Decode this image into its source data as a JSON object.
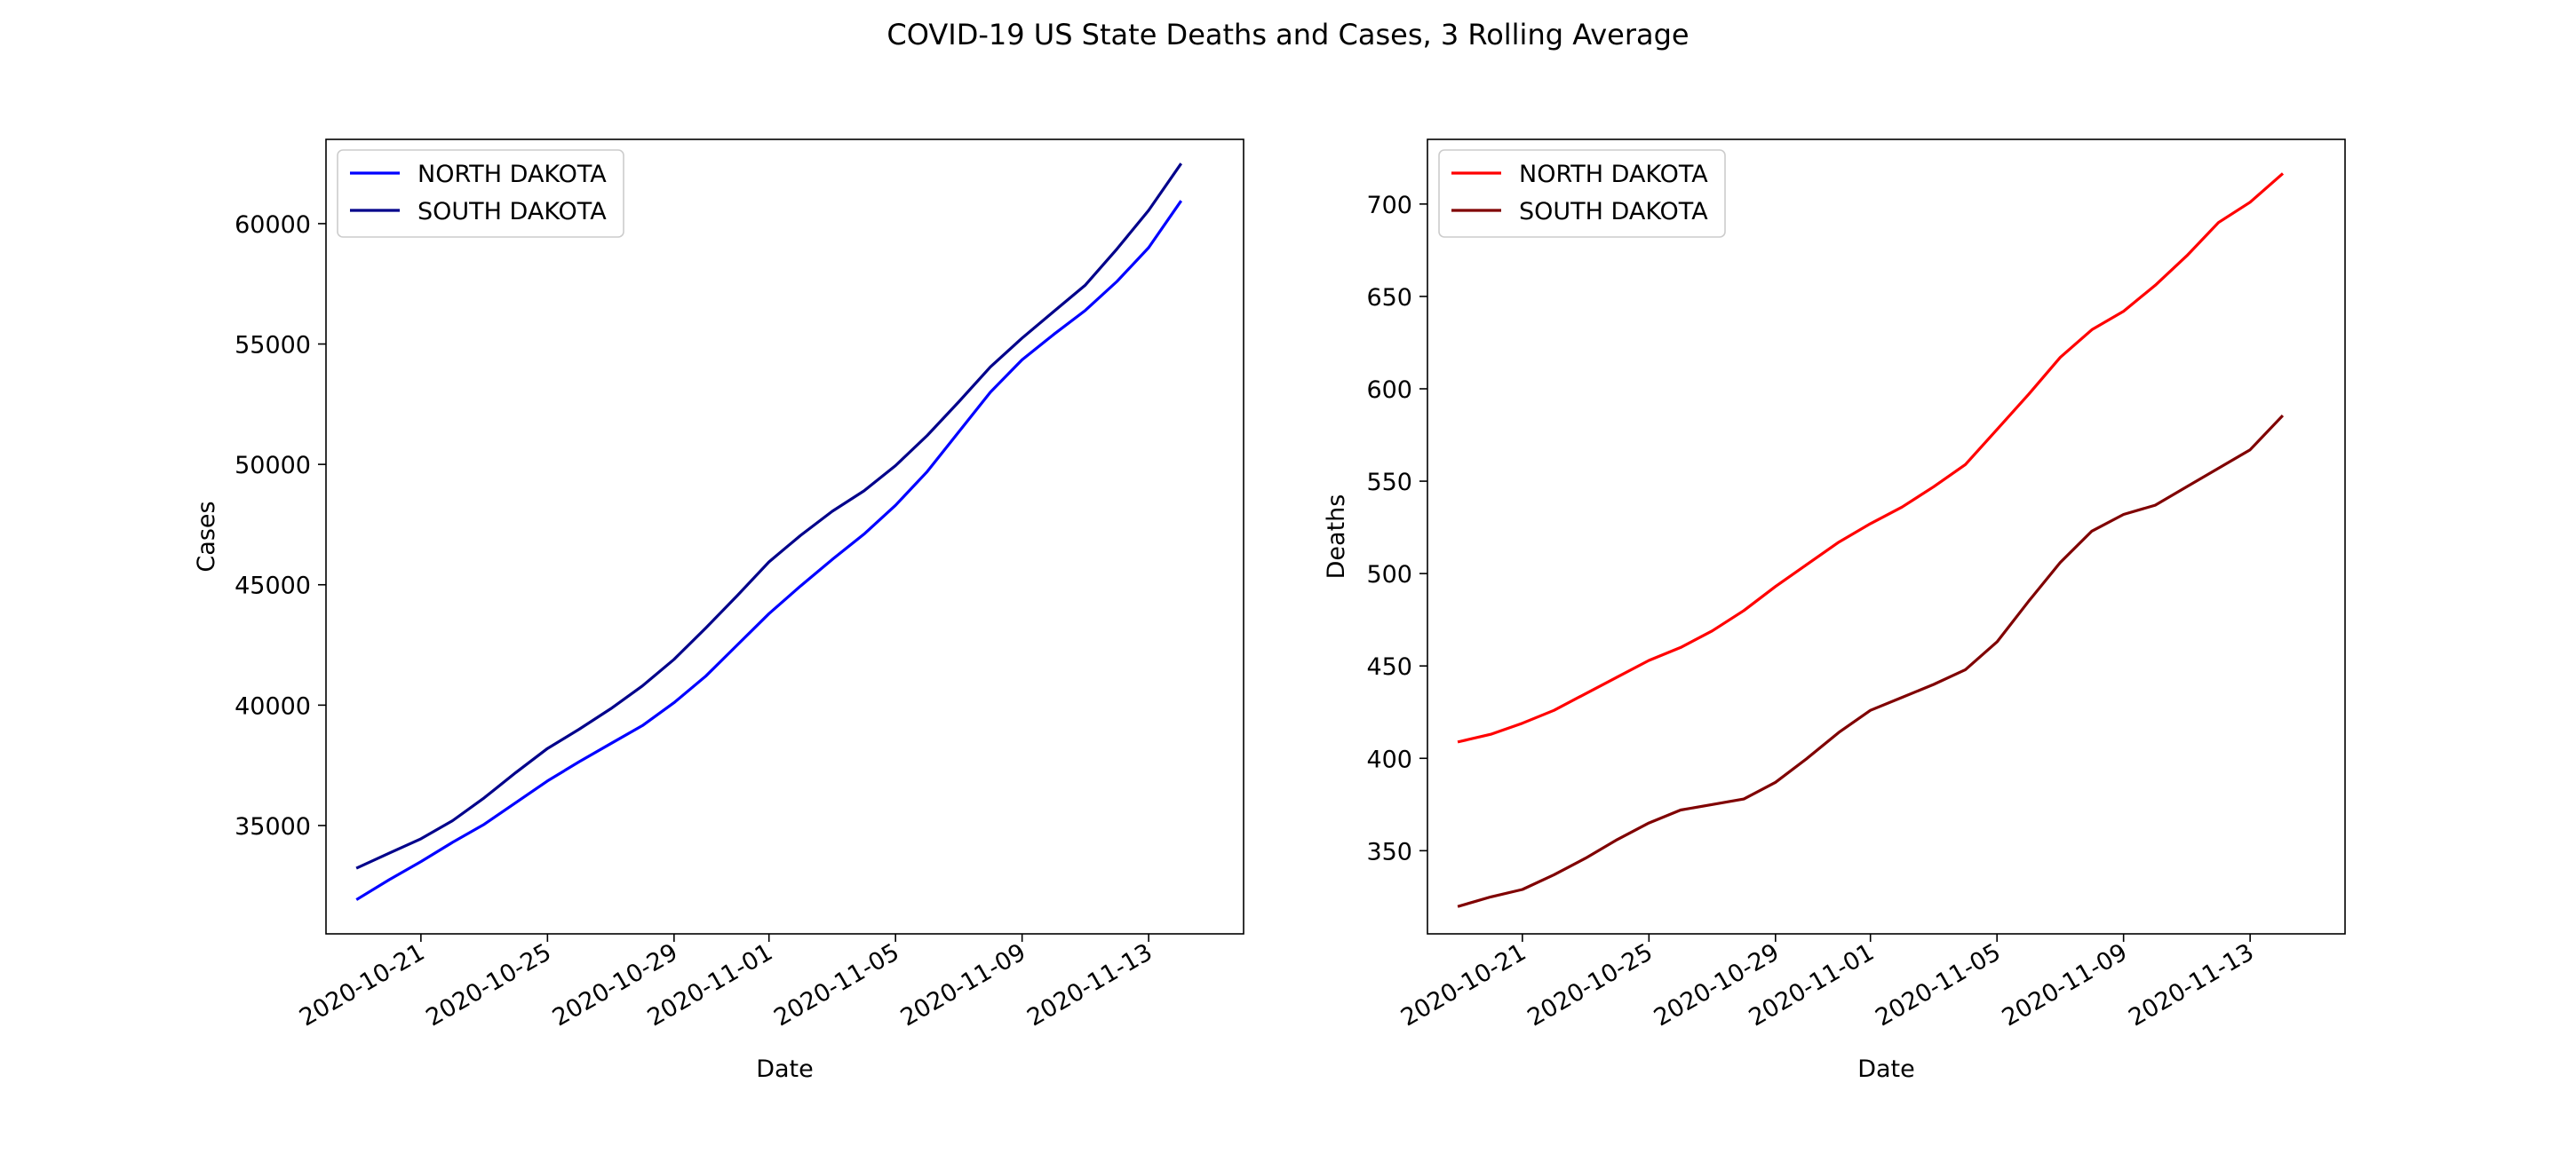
{
  "figure": {
    "title": "COVID-19 US State Deaths and Cases, 3 Rolling Average"
  },
  "chart_data": [
    {
      "type": "line",
      "xlabel": "Date",
      "ylabel": "Cases",
      "xlim": [
        "2020-10-18",
        "2020-11-16"
      ],
      "ylim": [
        30500,
        63500
      ],
      "x_ticks": [
        "2020-10-21",
        "2020-10-25",
        "2020-10-29",
        "2020-11-01",
        "2020-11-05",
        "2020-11-09",
        "2020-11-13"
      ],
      "y_ticks": [
        35000,
        40000,
        45000,
        50000,
        55000,
        60000
      ],
      "legend_position": "upper-left",
      "x": [
        "2020-10-19",
        "2020-10-20",
        "2020-10-21",
        "2020-10-22",
        "2020-10-23",
        "2020-10-24",
        "2020-10-25",
        "2020-10-26",
        "2020-10-27",
        "2020-10-28",
        "2020-10-29",
        "2020-10-30",
        "2020-10-31",
        "2020-11-01",
        "2020-11-02",
        "2020-11-03",
        "2020-11-04",
        "2020-11-05",
        "2020-11-06",
        "2020-11-07",
        "2020-11-08",
        "2020-11-09",
        "2020-11-10",
        "2020-11-11",
        "2020-11-12",
        "2020-11-13",
        "2020-11-14"
      ],
      "series": [
        {
          "name": "NORTH DAKOTA",
          "color": "#0000ff",
          "values": [
            31950,
            32750,
            33500,
            34300,
            35050,
            35950,
            36850,
            37650,
            38400,
            39150,
            40100,
            41200,
            42500,
            43800,
            44950,
            46050,
            47100,
            48300,
            49700,
            51350,
            53000,
            54350,
            55400,
            56400,
            57600,
            59000,
            60900
          ]
        },
        {
          "name": "SOUTH DAKOTA",
          "color": "#00008b",
          "values": [
            33250,
            33850,
            34450,
            35200,
            36150,
            37200,
            38200,
            39000,
            39850,
            40800,
            41900,
            43200,
            44550,
            45950,
            47050,
            48050,
            48900,
            49950,
            51200,
            52600,
            54050,
            55250,
            56350,
            57450,
            58950,
            60550,
            62450
          ]
        }
      ]
    },
    {
      "type": "line",
      "xlabel": "Date",
      "ylabel": "Deaths",
      "xlim": [
        "2020-10-18",
        "2020-11-16"
      ],
      "ylim": [
        305,
        735
      ],
      "x_ticks": [
        "2020-10-21",
        "2020-10-25",
        "2020-10-29",
        "2020-11-01",
        "2020-11-05",
        "2020-11-09",
        "2020-11-13"
      ],
      "y_ticks": [
        350,
        400,
        450,
        500,
        550,
        600,
        650,
        700
      ],
      "legend_position": "upper-left",
      "x": [
        "2020-10-19",
        "2020-10-20",
        "2020-10-21",
        "2020-10-22",
        "2020-10-23",
        "2020-10-24",
        "2020-10-25",
        "2020-10-26",
        "2020-10-27",
        "2020-10-28",
        "2020-10-29",
        "2020-10-30",
        "2020-10-31",
        "2020-11-01",
        "2020-11-02",
        "2020-11-03",
        "2020-11-04",
        "2020-11-05",
        "2020-11-06",
        "2020-11-07",
        "2020-11-08",
        "2020-11-09",
        "2020-11-10",
        "2020-11-11",
        "2020-11-12",
        "2020-11-13",
        "2020-11-14"
      ],
      "series": [
        {
          "name": "NORTH DAKOTA",
          "color": "#ff0000",
          "values": [
            409,
            413,
            419,
            426,
            435,
            444,
            453,
            460,
            469,
            480,
            493,
            505,
            517,
            527,
            536,
            547,
            559,
            578,
            597,
            617,
            632,
            642,
            656,
            672,
            690,
            701,
            716
          ]
        },
        {
          "name": "SOUTH DAKOTA",
          "color": "#800000",
          "values": [
            320,
            325,
            329,
            337,
            346,
            356,
            365,
            372,
            375,
            378,
            387,
            400,
            414,
            426,
            433,
            440,
            448,
            463,
            485,
            506,
            523,
            532,
            537,
            547,
            557,
            567,
            585
          ]
        }
      ]
    }
  ]
}
